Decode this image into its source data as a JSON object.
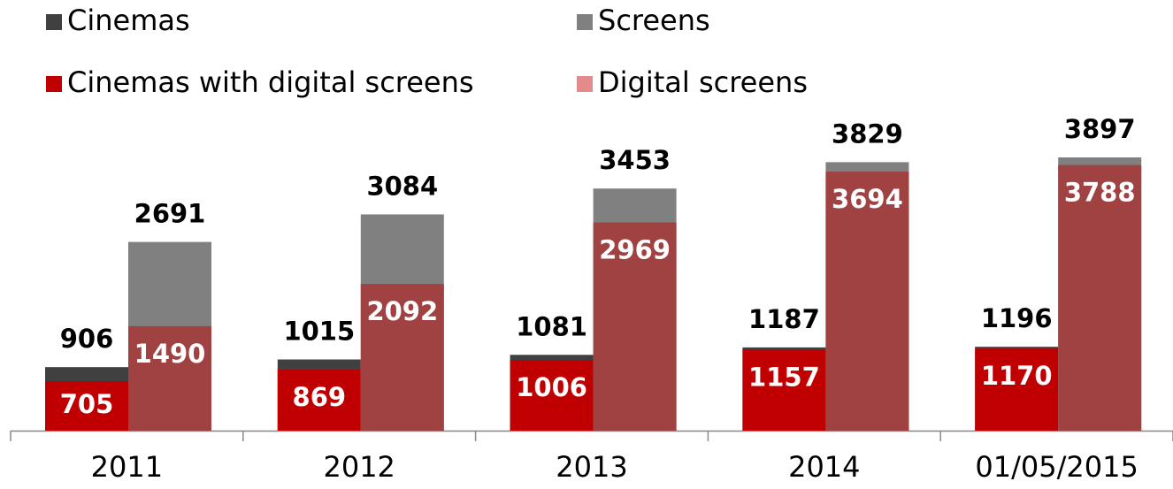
{
  "chart_data": {
    "type": "bar",
    "categories": [
      "2011",
      "2012",
      "2013",
      "2014",
      "01/05/2015"
    ],
    "series": [
      {
        "name": "Cinemas",
        "color": "#404040",
        "values": [
          906,
          1015,
          1081,
          1187,
          1196
        ]
      },
      {
        "name": "Screens",
        "color": "#808080",
        "values": [
          2691,
          3084,
          3453,
          3829,
          3897
        ]
      },
      {
        "name": "Cinemas with digital screens",
        "color": "#c00000",
        "values": [
          705,
          869,
          1006,
          1157,
          1170
        ]
      },
      {
        "name": "Digital screens",
        "color": "#a04142",
        "values": [
          1490,
          2092,
          2969,
          3694,
          3788
        ]
      }
    ]
  }
}
